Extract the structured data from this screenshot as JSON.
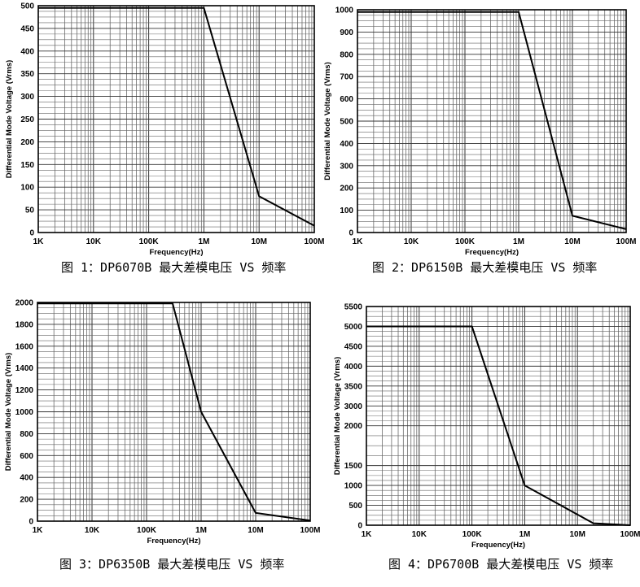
{
  "chart_data": [
    {
      "type": "line",
      "caption": "图 1：DP6070B 最大差模电压 VS 频率",
      "xlabel": "Frequency(Hz)",
      "ylabel": "Differential Mode Voltage (Vrms)",
      "x_scale": "log",
      "xlim": [
        1000,
        100000000
      ],
      "x_ticks": [
        "1K",
        "10K",
        "100K",
        "1M",
        "10M",
        "100M"
      ],
      "ylim": [
        0,
        500
      ],
      "y_ticks": [
        "0",
        "50",
        "100",
        "150",
        "200",
        "250",
        "300",
        "350",
        "400",
        "450",
        "500"
      ],
      "grid": true,
      "series": [
        {
          "x": [
            1000,
            1000000,
            10000000,
            100000000
          ],
          "y": [
            495,
            495,
            80,
            15
          ]
        }
      ]
    },
    {
      "type": "line",
      "caption": "图 2：DP6150B 最大差模电压 VS 频率",
      "xlabel": "Frequency(Hz)",
      "ylabel": "Differential Mode Voltage (Vrms)",
      "x_scale": "log",
      "xlim": [
        1000,
        100000000
      ],
      "x_ticks": [
        "1K",
        "10K",
        "100K",
        "1M",
        "10M",
        "100M"
      ],
      "ylim": [
        0,
        1000
      ],
      "y_ticks": [
        "0",
        "100",
        "200",
        "300",
        "400",
        "500",
        "600",
        "700",
        "800",
        "900",
        "1000"
      ],
      "grid": true,
      "series": [
        {
          "x": [
            1000,
            1000000,
            10000000,
            100000000
          ],
          "y": [
            990,
            990,
            75,
            15
          ]
        }
      ]
    },
    {
      "type": "line",
      "caption": "图 3：DP6350B 最大差模电压 VS 频率",
      "xlabel": "Frequency(Hz)",
      "ylabel": "Differential Mode Voltage (Vrms)",
      "x_scale": "log",
      "xlim": [
        1000,
        100000000
      ],
      "x_ticks": [
        "1K",
        "10K",
        "100K",
        "1M",
        "10M",
        "100M"
      ],
      "ylim": [
        0,
        2000
      ],
      "y_ticks": [
        "0",
        "200",
        "400",
        "600",
        "800",
        "1000",
        "1200",
        "1400",
        "1600",
        "1800",
        "2000"
      ],
      "grid": true,
      "series": [
        {
          "x": [
            1000,
            300000,
            1000000,
            10000000,
            100000000
          ],
          "y": [
            1990,
            1990,
            1000,
            75,
            5
          ]
        }
      ]
    },
    {
      "type": "line",
      "caption": "图 4：DP6700B 最大差模电压 VS 频率",
      "xlabel": "Frequency(Hz)",
      "ylabel": "Differential Mode Voltage (Vrms)",
      "x_scale": "log",
      "xlim": [
        1000,
        100000000
      ],
      "x_ticks": [
        "1K",
        "10K",
        "100K",
        "1M",
        "10M",
        "100M"
      ],
      "ylim": [
        0,
        5500
      ],
      "y_ticks": [
        "0",
        "500",
        "1000",
        "1500",
        "2000",
        "3000",
        "3500",
        "4000",
        "4500",
        "5000",
        "5500"
      ],
      "grid": true,
      "series": [
        {
          "x": [
            1000,
            100000,
            1000000,
            20000000,
            100000000
          ],
          "y": [
            5000,
            5000,
            1000,
            50,
            0
          ]
        }
      ]
    }
  ]
}
